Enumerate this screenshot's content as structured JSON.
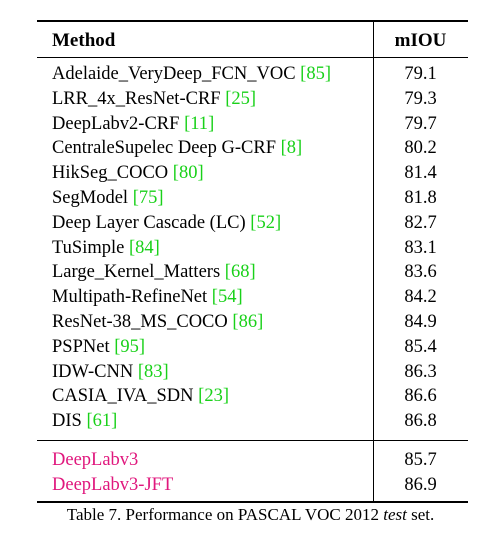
{
  "header": {
    "method": "Method",
    "miou": "mIOU"
  },
  "rows": [
    {
      "name": "Adelaide_VeryDeep_FCN_VOC",
      "ref": "85",
      "miou": "79.1"
    },
    {
      "name": "LRR_4x_ResNet-CRF",
      "ref": "25",
      "miou": "79.3"
    },
    {
      "name": "DeepLabv2-CRF",
      "ref": "11",
      "miou": "79.7"
    },
    {
      "name": "CentraleSupelec Deep G-CRF",
      "ref": "8",
      "miou": "80.2"
    },
    {
      "name": "HikSeg_COCO",
      "ref": "80",
      "miou": "81.4"
    },
    {
      "name": "SegModel",
      "ref": "75",
      "miou": "81.8"
    },
    {
      "name": "Deep Layer Cascade (LC)",
      "ref": "52",
      "miou": "82.7"
    },
    {
      "name": "TuSimple",
      "ref": "84",
      "miou": "83.1"
    },
    {
      "name": "Large_Kernel_Matters",
      "ref": "68",
      "miou": "83.6"
    },
    {
      "name": "Multipath-RefineNet",
      "ref": "54",
      "miou": "84.2"
    },
    {
      "name": "ResNet-38_MS_COCO",
      "ref": "86",
      "miou": "84.9"
    },
    {
      "name": "PSPNet",
      "ref": "95",
      "miou": "85.4"
    },
    {
      "name": "IDW-CNN",
      "ref": "83",
      "miou": "86.3"
    },
    {
      "name": "CASIA_IVA_SDN",
      "ref": "23",
      "miou": "86.6"
    },
    {
      "name": "DIS",
      "ref": "61",
      "miou": "86.8"
    }
  ],
  "ours": [
    {
      "name": "DeepLabv3",
      "miou": "85.7"
    },
    {
      "name": "DeepLabv3-JFT",
      "miou": "86.9"
    }
  ],
  "caption": {
    "prefix": "Table 7. Performance on PASCAL VOC 2012 ",
    "italic": "test",
    "suffix": " set."
  },
  "colors": {
    "citation": "#19d119",
    "ours": "#e0177d"
  }
}
